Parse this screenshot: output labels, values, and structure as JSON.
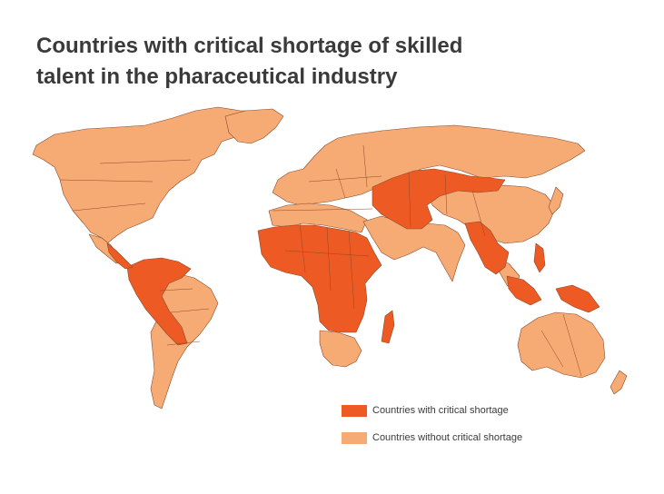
{
  "title": {
    "line1": "Countries with critical shortage of skilled",
    "line2": "talent in the pharaceutical industry"
  },
  "legend": {
    "items": [
      {
        "label": "Countries with critical shortage",
        "color": "#ee5a24"
      },
      {
        "label": "Countries without critical shortage",
        "color": "#f6aa74"
      }
    ]
  },
  "colors": {
    "shortage": "#ee5a24",
    "no_shortage": "#f6aa74",
    "border": "#8a4a2a",
    "title": "#3a3a3a"
  }
}
